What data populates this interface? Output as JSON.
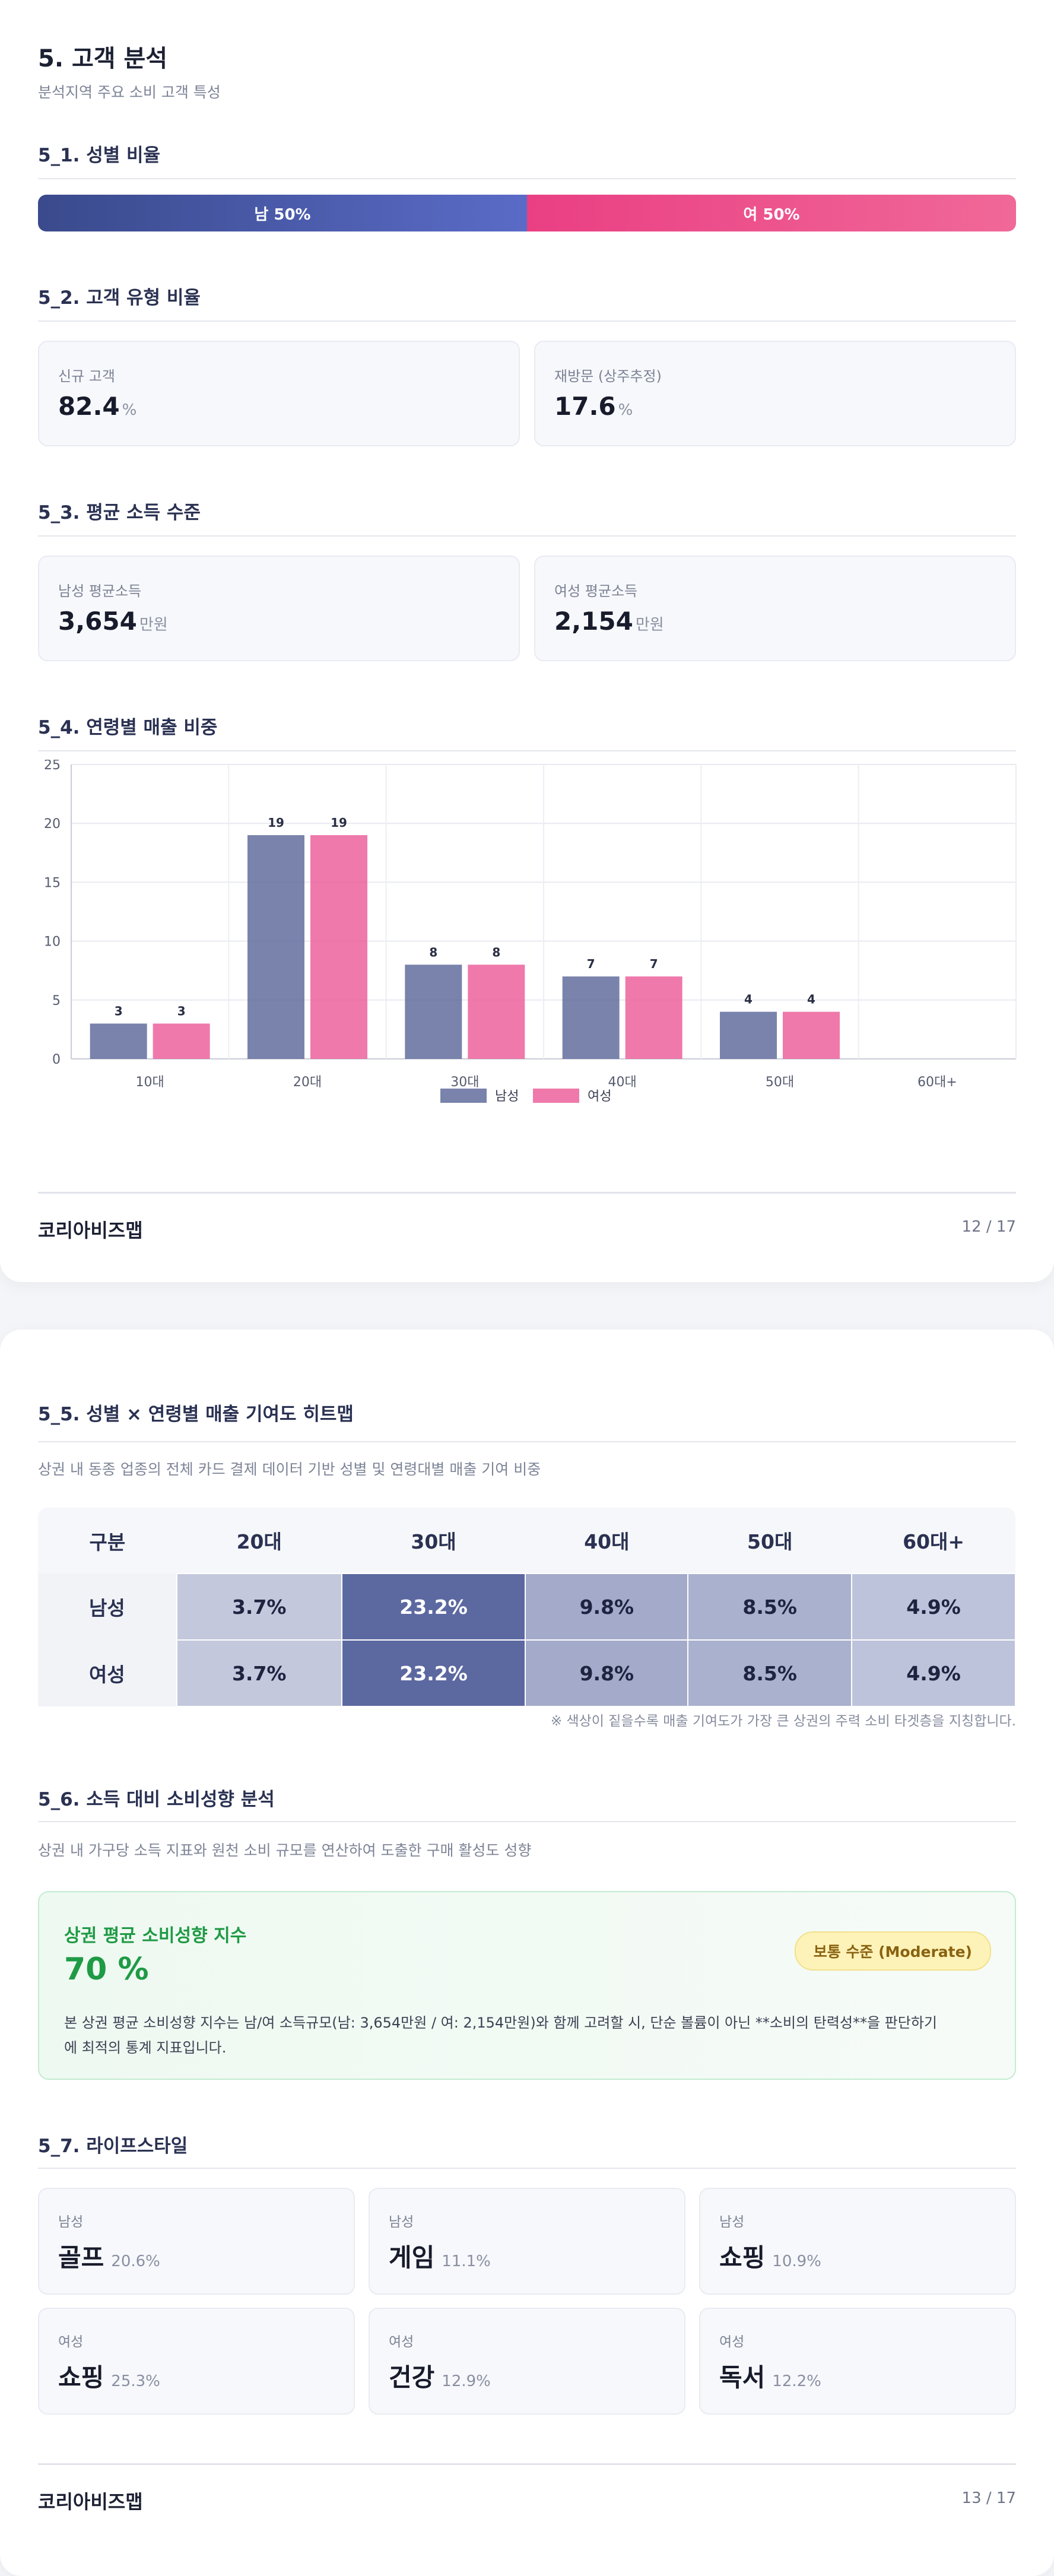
{
  "page1": {
    "title": "5. 고객 분석",
    "subtitle": "분석지역 주요 소비 고객 특성",
    "gender": {
      "heading": "5_1. 성별 비율",
      "male_label": "남 50%",
      "female_label": "여 50%",
      "male_share": 0.5,
      "female_share": 0.5
    },
    "customer_type": {
      "heading": "5_2. 고객 유형 비율",
      "new_label": "신규 고객",
      "new_value": "82.4",
      "new_unit": "%",
      "return_label": "재방문 (상주추정)",
      "return_value": "17.6",
      "return_unit": "%"
    },
    "income": {
      "heading": "5_3. 평균 소득 수준",
      "male_label": "남성 평균소득",
      "male_value": "3,654",
      "male_unit": "만원",
      "female_label": "여성 평균소득",
      "female_value": "2,154",
      "female_unit": "만원"
    },
    "age_chart_heading": "5_4. 연령별 매출 비중",
    "footer": {
      "brand": "코리아비즈맵",
      "page": "12 / 17"
    }
  },
  "chart_data": {
    "type": "bar",
    "categories": [
      "10대",
      "20대",
      "30대",
      "40대",
      "50대",
      "60대+"
    ],
    "series": [
      {
        "name": "남성",
        "values": [
          3,
          19,
          8,
          7,
          4,
          null
        ],
        "color": "#5c6899"
      },
      {
        "name": "여성",
        "values": [
          3,
          19,
          8,
          7,
          4,
          null
        ],
        "color": "#ec5c98"
      }
    ],
    "title": "",
    "xlabel": "",
    "ylabel": "",
    "ylim": [
      0,
      25
    ],
    "yticks": [
      0,
      5,
      10,
      15,
      20,
      25
    ],
    "grid": true,
    "legend": "bottom-center"
  },
  "page2": {
    "heatmap": {
      "heading": "5_5. 성별 × 연령별 매출 기여도 히트맵",
      "desc": "상권 내 동종 업종의 전체 카드 결제 데이터 기반 성별 및 연령대별 매출 기여 비중",
      "corner": "구분",
      "columns": [
        "20대",
        "30대",
        "40대",
        "50대",
        "60대+"
      ],
      "rows": [
        {
          "label": "남성",
          "values": [
            "3.7%",
            "23.2%",
            "9.8%",
            "8.5%",
            "4.9%"
          ],
          "levels": [
            3.7,
            23.2,
            9.8,
            8.5,
            4.9
          ]
        },
        {
          "label": "여성",
          "values": [
            "3.7%",
            "23.2%",
            "9.8%",
            "8.5%",
            "4.9%"
          ],
          "levels": [
            3.7,
            23.2,
            9.8,
            8.5,
            4.9
          ]
        }
      ],
      "note": "※ 색상이 짙을수록 매출 기여도가 가장 큰 상권의 주력 소비 타겟층을 지칭합니다."
    },
    "propensity": {
      "heading": "5_6. 소득 대비 소비성향 분석",
      "desc": "상권 내 가구당 소득 지표와 원천 소비 규모를 연산하여 도출한 구매 활성도 성향",
      "box_title": "상권 평균 소비성향 지수",
      "value": "70 %",
      "badge": "보통 수준 (Moderate)",
      "body1": "본 상권 평균 소비성향 지수는 남/여 소득규모(남: 3,654만원 / 여: 2,154만원)와 함께 고려할 시, 단순 볼륨이 아닌 **소비의 탄력성**을 판단하기",
      "body2": "에 최적의 통계 지표입니다."
    },
    "lifestyle": {
      "heading": "5_7. 라이프스타일",
      "items": [
        {
          "gender": "남성",
          "name": "골프",
          "pct": "20.6%"
        },
        {
          "gender": "남성",
          "name": "게임",
          "pct": "11.1%"
        },
        {
          "gender": "남성",
          "name": "쇼핑",
          "pct": "10.9%"
        },
        {
          "gender": "여성",
          "name": "쇼핑",
          "pct": "25.3%"
        },
        {
          "gender": "여성",
          "name": "건강",
          "pct": "12.9%"
        },
        {
          "gender": "여성",
          "name": "독서",
          "pct": "12.2%"
        }
      ]
    },
    "footer": {
      "brand": "코리아비즈맵",
      "page": "13 / 17"
    }
  }
}
